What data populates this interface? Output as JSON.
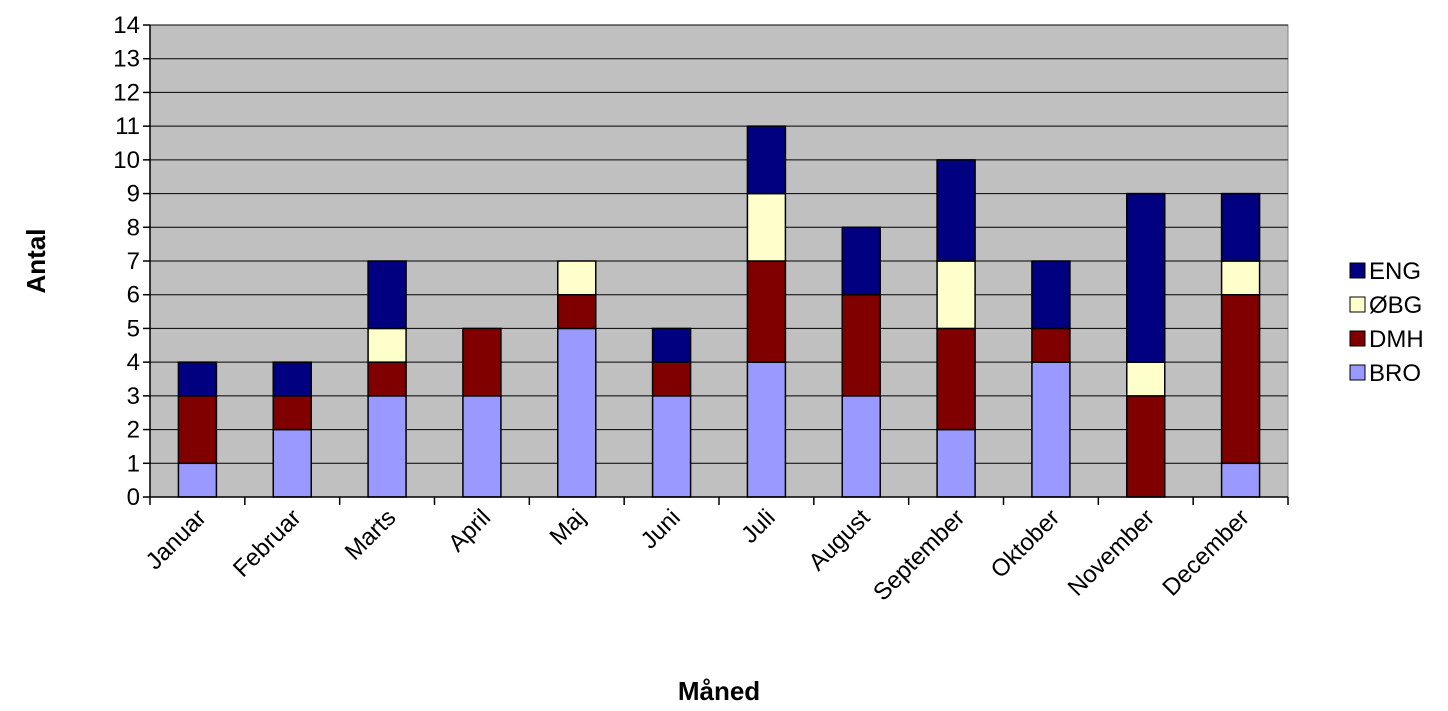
{
  "chart_data": {
    "type": "bar",
    "stacked": true,
    "title": "",
    "xlabel": "Måned",
    "ylabel": "Antal",
    "ylim": [
      0,
      14
    ],
    "yticks": [
      0,
      1,
      2,
      3,
      4,
      5,
      6,
      7,
      8,
      9,
      10,
      11,
      12,
      13,
      14
    ],
    "grid": true,
    "legend_position": "right",
    "categories": [
      "Januar",
      "Februar",
      "Marts",
      "April",
      "Maj",
      "Juni",
      "Juli",
      "August",
      "September",
      "Oktober",
      "November",
      "December"
    ],
    "series": [
      {
        "name": "BRO",
        "color": "#9999ff",
        "values": [
          1,
          2,
          3,
          3,
          5,
          3,
          4,
          3,
          2,
          4,
          0,
          1
        ]
      },
      {
        "name": "DMH",
        "color": "#800000",
        "values": [
          2,
          1,
          1,
          2,
          1,
          1,
          3,
          3,
          3,
          1,
          3,
          5
        ]
      },
      {
        "name": "ØBG",
        "color": "#ffffcc",
        "values": [
          0,
          0,
          1,
          0,
          1,
          0,
          2,
          0,
          2,
          0,
          1,
          1
        ]
      },
      {
        "name": "ENG",
        "color": "#000080",
        "values": [
          1,
          1,
          2,
          0,
          0,
          1,
          2,
          2,
          3,
          2,
          5,
          2
        ]
      }
    ],
    "legend_order": [
      "ENG",
      "ØBG",
      "DMH",
      "BRO"
    ],
    "plot_background": "#c0c0c0"
  }
}
